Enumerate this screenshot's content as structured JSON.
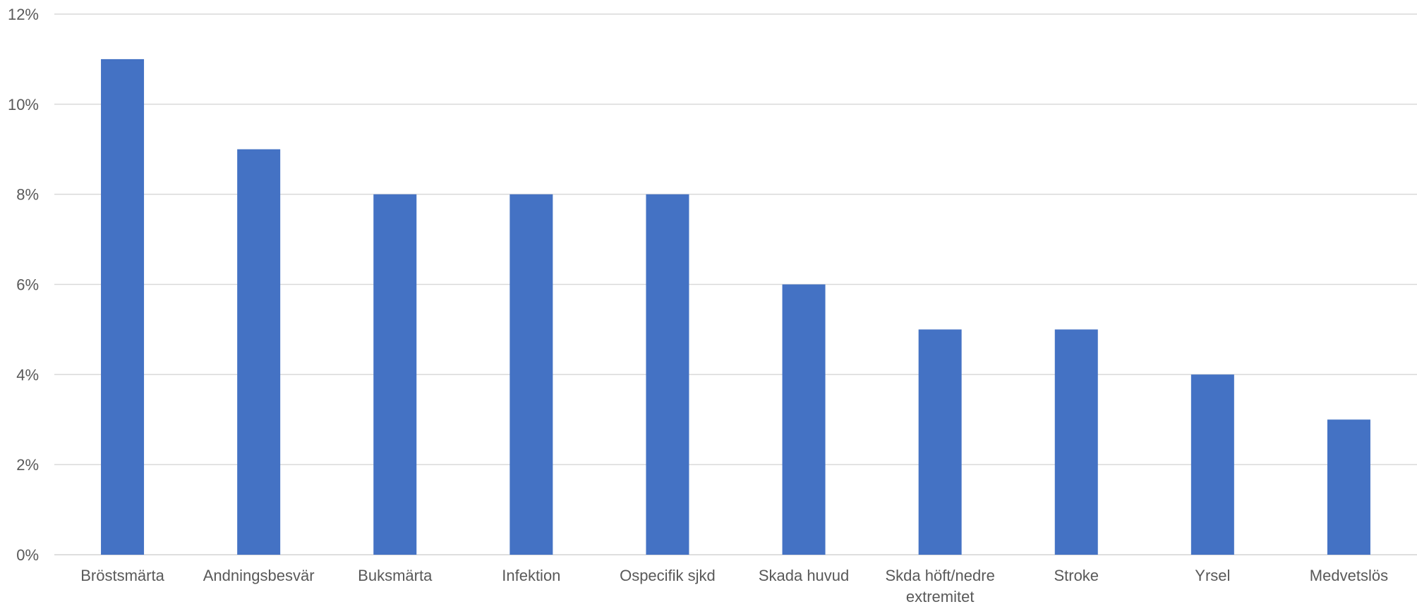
{
  "chart_data": {
    "type": "bar",
    "title": "",
    "xlabel": "",
    "ylabel": "",
    "categories": [
      [
        "Bröstsmärta"
      ],
      [
        "Andningsbesvär"
      ],
      [
        "Buksmärta"
      ],
      [
        "Infektion"
      ],
      [
        "Ospecifik sjkd"
      ],
      [
        "Skada huvud"
      ],
      [
        "Skda höft/nedre",
        "extremitet"
      ],
      [
        "Stroke"
      ],
      [
        "Yrsel"
      ],
      [
        "Medvetslös"
      ]
    ],
    "values": [
      11,
      9,
      8,
      8,
      8,
      6,
      5,
      5,
      4,
      3
    ],
    "ylim": [
      0,
      12
    ],
    "yticks": [
      0,
      2,
      4,
      6,
      8,
      10,
      12
    ],
    "ytick_labels": [
      "0%",
      "2%",
      "4%",
      "6%",
      "8%",
      "10%",
      "12%"
    ],
    "grid": true,
    "legend": "none",
    "colors": {
      "bar": "#4472C4",
      "grid": "#D9D9D9",
      "text": "#595959"
    }
  }
}
